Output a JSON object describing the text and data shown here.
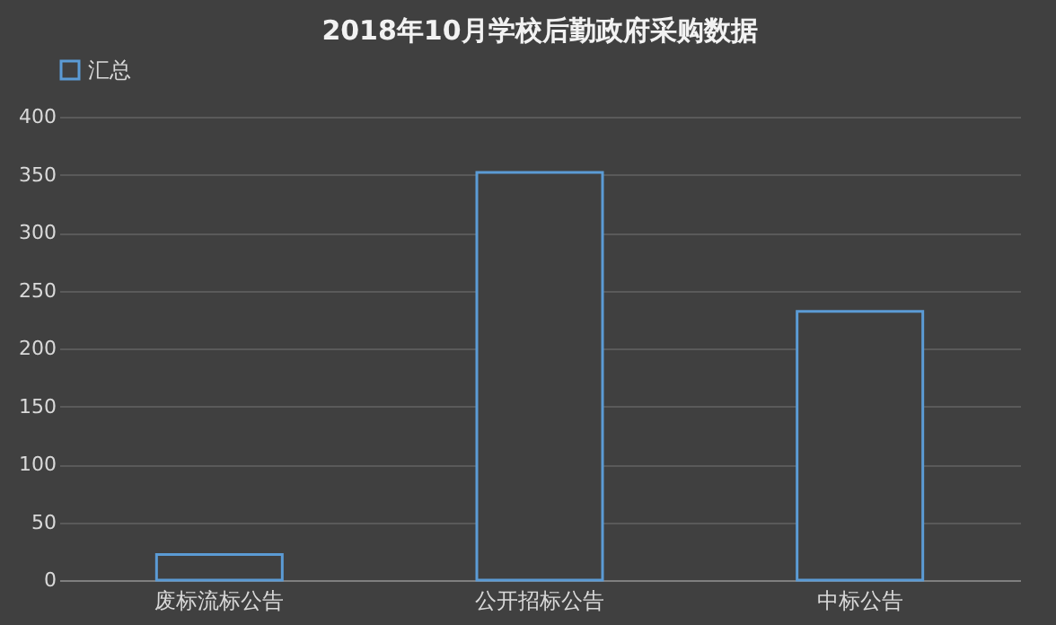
{
  "chart_data": {
    "type": "bar",
    "title": "2018年10月学校后勤政府采购数据",
    "categories": [
      "废标流标公告",
      "公开招标公告",
      "中标公告"
    ],
    "series": [
      {
        "name": "汇总",
        "color": "#5b9bd5",
        "values": [
          22,
          352,
          232
        ]
      }
    ],
    "ylim": [
      0,
      400
    ],
    "yticks": [
      0,
      50,
      100,
      150,
      200,
      250,
      300,
      350,
      400
    ],
    "grid": "y",
    "legend": "top"
  }
}
